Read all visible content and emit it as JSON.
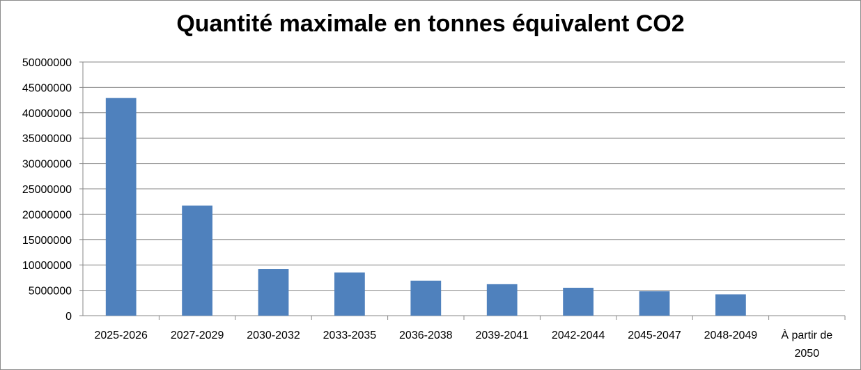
{
  "chart_data": {
    "type": "bar",
    "title": "Quantité maximale en tonnes équivalent CO2",
    "xlabel": "",
    "ylabel": "",
    "categories": [
      "2025-2026",
      "2027-2029",
      "2030-2032",
      "2033-2035",
      "2036-2038",
      "2039-2041",
      "2042-2044",
      "2045-2047",
      "2048-2049",
      "À partir de 2050"
    ],
    "values": [
      42900000,
      21700000,
      9200000,
      8500000,
      6900000,
      6200000,
      5500000,
      4800000,
      4200000,
      0
    ],
    "ylim": [
      0,
      50000000
    ],
    "yticks": [
      0,
      5000000,
      10000000,
      15000000,
      20000000,
      25000000,
      30000000,
      35000000,
      40000000,
      45000000,
      50000000
    ],
    "ytick_labels": [
      "0",
      "5000000",
      "10000000",
      "15000000",
      "20000000",
      "25000000",
      "30000000",
      "35000000",
      "40000000",
      "45000000",
      "50000000"
    ],
    "grid": true,
    "legend": "none",
    "bar_color": "#4f81bd",
    "grid_color": "#878787"
  }
}
